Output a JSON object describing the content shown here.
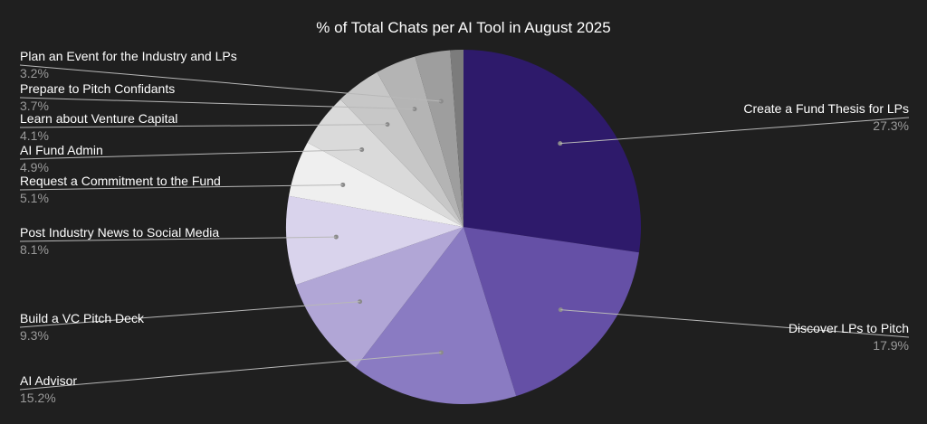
{
  "chart_data": {
    "type": "pie",
    "title": "% of Total Chats per AI Tool in August 2025",
    "slices": [
      {
        "label": "Create a Fund Thesis for LPs",
        "value": 27.3,
        "value_label": "27.3%",
        "color": "#2e1a6b"
      },
      {
        "label": "Discover LPs to Pitch",
        "value": 17.9,
        "value_label": "17.9%",
        "color": "#6550a6"
      },
      {
        "label": "AI Advisor",
        "value": 15.2,
        "value_label": "15.2%",
        "color": "#8a7bc2"
      },
      {
        "label": "Build a VC Pitch Deck",
        "value": 9.3,
        "value_label": "9.3%",
        "color": "#b1a6d6"
      },
      {
        "label": "Post Industry News to Social Media",
        "value": 8.1,
        "value_label": "8.1%",
        "color": "#d9d3ec"
      },
      {
        "label": "Request a Commitment to the Fund",
        "value": 5.1,
        "value_label": "5.1%",
        "color": "#efefef"
      },
      {
        "label": "AI Fund Admin",
        "value": 4.9,
        "value_label": "4.9%",
        "color": "#dadada"
      },
      {
        "label": "Learn about Venture Capital",
        "value": 4.1,
        "value_label": "4.1%",
        "color": "#c7c7c7"
      },
      {
        "label": "Prepare to Pitch Confidants",
        "value": 3.7,
        "value_label": "3.7%",
        "color": "#b4b4b4"
      },
      {
        "label": "Plan an Event for the Industry and LPs",
        "value": 3.2,
        "value_label": "3.2%",
        "color": "#9e9e9e"
      },
      {
        "label": "",
        "value": 1.2,
        "value_label": "",
        "color": "#7c7c7c"
      }
    ],
    "start_angle_deg": 0,
    "direction": "clockwise",
    "legend": "none"
  }
}
